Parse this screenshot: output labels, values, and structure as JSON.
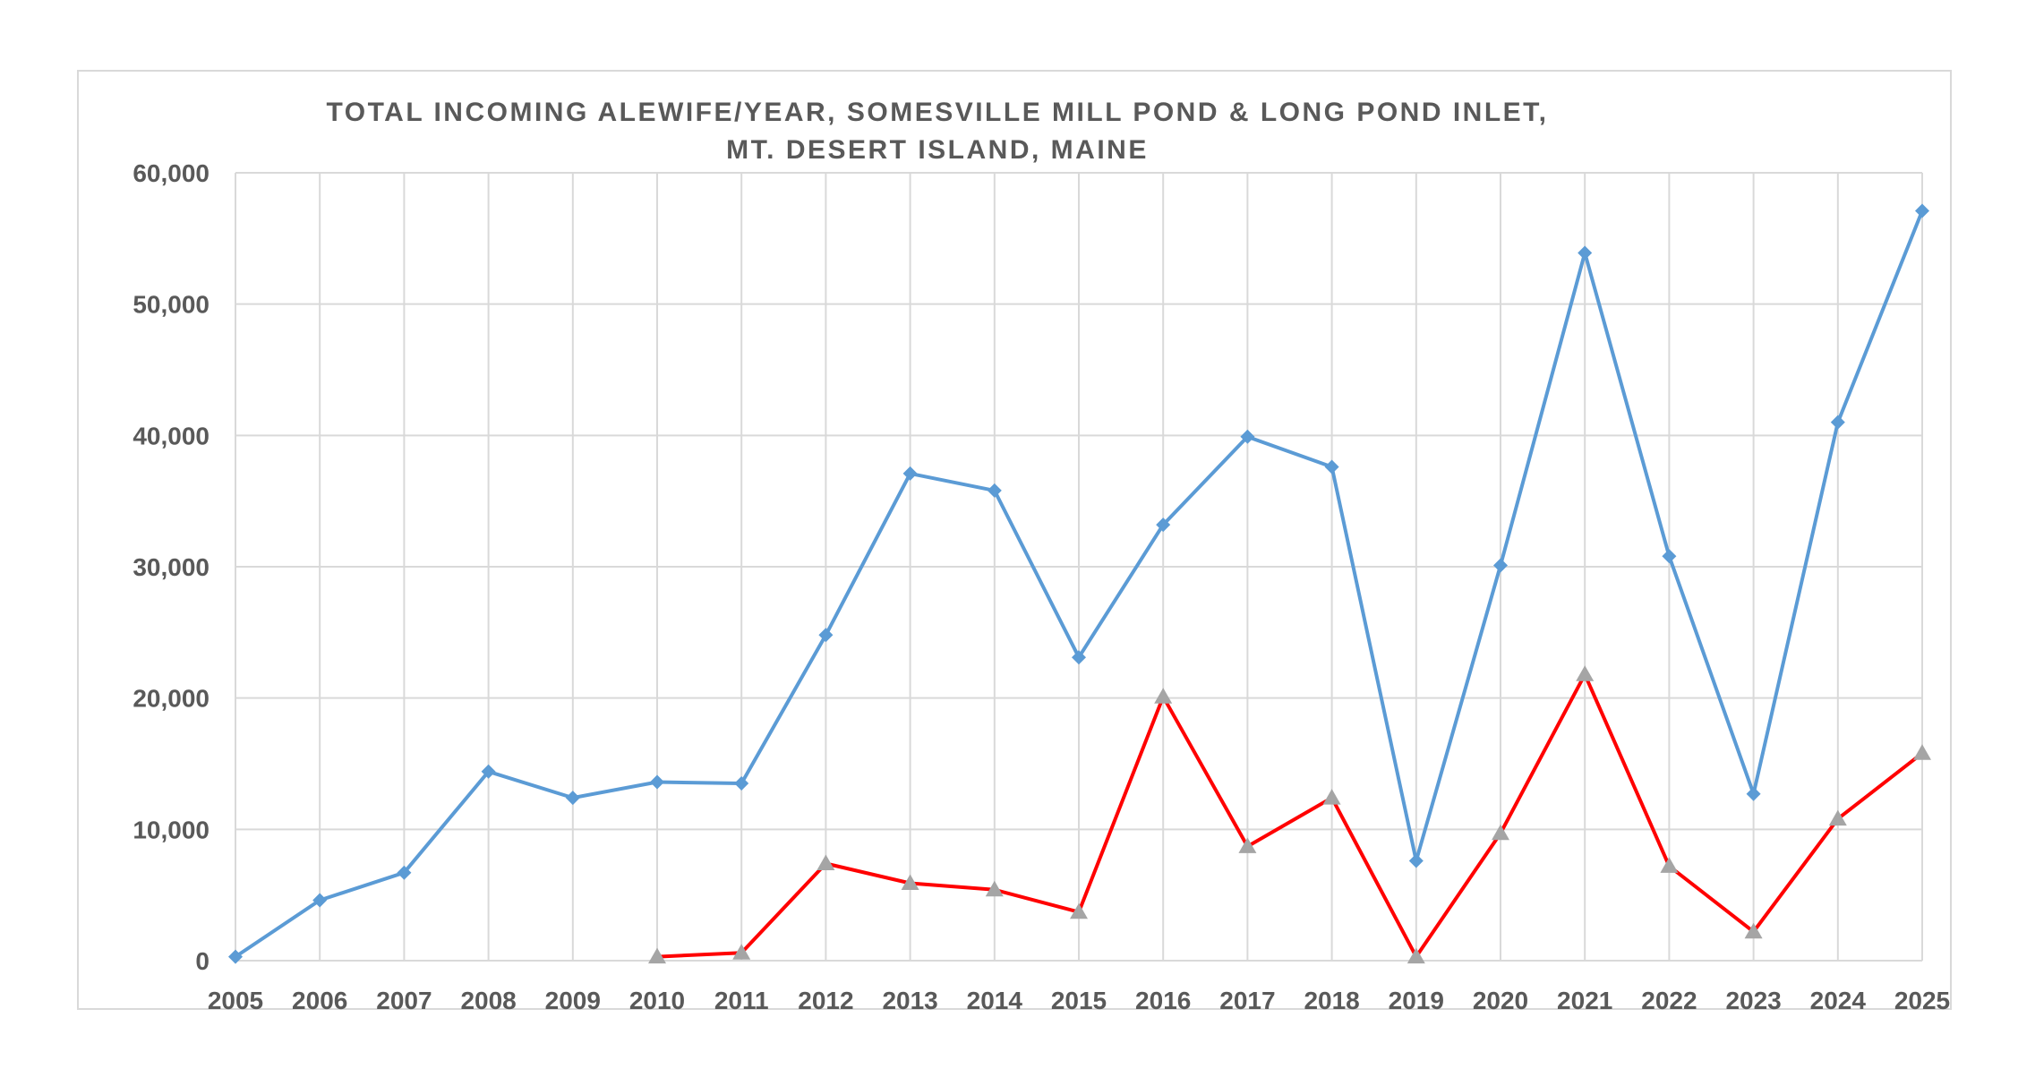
{
  "chart_data": {
    "type": "line",
    "title_lines": [
      "TOTAL INCOMING ALEWIFE/YEAR, SOMESVILLE MILL POND & LONG POND INLET,",
      "MT. DESERT ISLAND, MAINE"
    ],
    "xlabel": "",
    "ylabel": "",
    "categories": [
      "2005",
      "2006",
      "2007",
      "2008",
      "2009",
      "2010",
      "2011",
      "2012",
      "2013",
      "2014",
      "2015",
      "2016",
      "2017",
      "2018",
      "2019",
      "2020",
      "2021",
      "2022",
      "2023",
      "2024",
      "2025"
    ],
    "ylim": [
      0,
      60000
    ],
    "yticks": [
      0,
      10000,
      20000,
      30000,
      40000,
      50000,
      60000
    ],
    "ytick_labels": [
      "0",
      "10,000",
      "20,000",
      "30,000",
      "40,000",
      "50,000",
      "60,000"
    ],
    "grid": true,
    "series": [
      {
        "marker": "diamond",
        "color": "#5b9bd5",
        "values": [
          300,
          4600,
          6700,
          14400,
          12400,
          13600,
          13500,
          24800,
          37100,
          35800,
          23100,
          33200,
          39900,
          37600,
          7600,
          30100,
          53900,
          30800,
          12700,
          41000,
          57100
        ]
      },
      {
        "marker": "triangle",
        "color": "#ff0000",
        "marker_color": "#a5a5a5",
        "values": [
          null,
          null,
          null,
          null,
          null,
          300,
          600,
          7400,
          5900,
          5400,
          3700,
          20100,
          8700,
          12400,
          300,
          9700,
          21800,
          7200,
          2200,
          10800,
          15800
        ]
      }
    ]
  }
}
